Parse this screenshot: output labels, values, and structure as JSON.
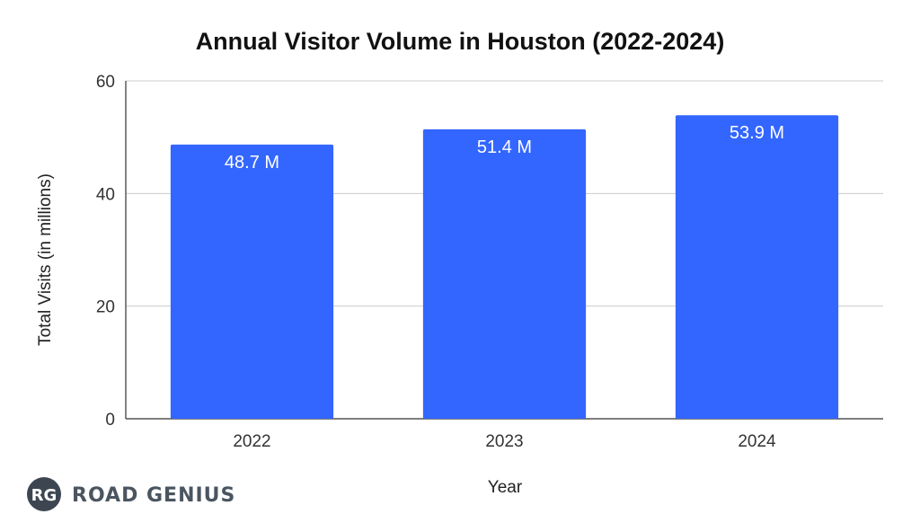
{
  "chart_data": {
    "type": "bar",
    "title": "Annual Visitor Volume in Houston (2022-2024)",
    "xlabel": "Year",
    "ylabel": "Total Visits (in millions)",
    "categories": [
      "2022",
      "2023",
      "2024"
    ],
    "values": [
      48.7,
      51.4,
      53.9
    ],
    "data_labels": [
      "48.7 M",
      "51.4 M",
      "53.9 M"
    ],
    "ylim": [
      0,
      60
    ],
    "yticks": [
      0,
      20,
      40,
      60
    ],
    "grid": true,
    "legend": "none",
    "bar_color": "#3366ff"
  },
  "brand": {
    "monogram": "RG",
    "name": "ROAD GENIUS"
  }
}
